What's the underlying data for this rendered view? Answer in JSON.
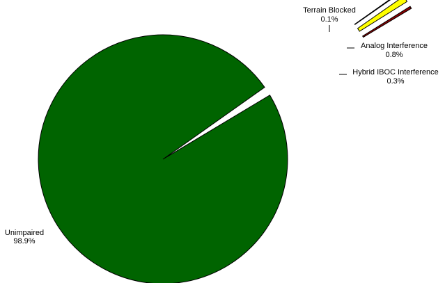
{
  "chart_data": {
    "type": "pie",
    "title": "",
    "slices": [
      {
        "label": "Unimpaired",
        "pct_label": "98.9%",
        "value": 98.9,
        "color": "#006400",
        "exploded": false
      },
      {
        "label": "Terrain Blocked",
        "pct_label": "0.1%",
        "value": 0.1,
        "color": "#00ffff",
        "exploded": true
      },
      {
        "label": "Analog Interference",
        "pct_label": "0.8%",
        "value": 0.8,
        "color": "#ffff00",
        "exploded": true
      },
      {
        "label": "Hybrid IBOC Interference",
        "pct_label": "0.3%",
        "value": 0.3,
        "color": "#8b0000",
        "exploded": true
      }
    ]
  }
}
